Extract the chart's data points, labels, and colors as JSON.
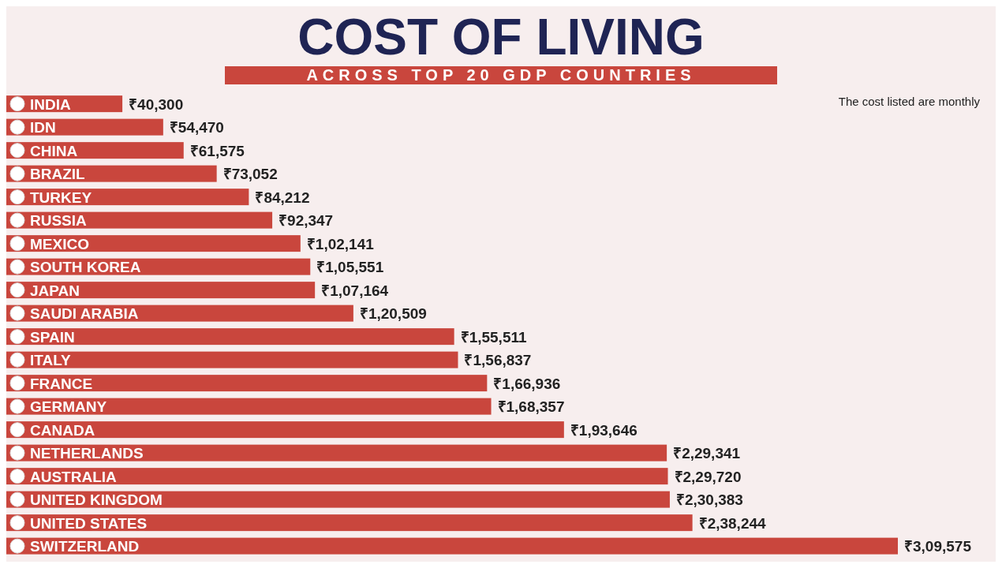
{
  "chart_data": {
    "type": "bar",
    "orientation": "horizontal",
    "title": "COST OF LIVING",
    "subtitle": "ACROSS TOP 20 GDP COUNTRIES",
    "annotations": [
      "The cost listed are monthly"
    ],
    "categories": [
      "INDIA",
      "IDN",
      "CHINA",
      "BRAZIL",
      "TURKEY",
      "RUSSIA",
      "MEXICO",
      "SOUTH KOREA",
      "JAPAN",
      "SAUDI ARABIA",
      "SPAIN",
      "ITALY",
      "FRANCE",
      "GERMANY",
      "CANADA",
      "NETHERLANDS",
      "AUSTRALIA",
      "UNITED KINGDOM",
      "UNITED STATES",
      "SWITZERLAND"
    ],
    "values": [
      40300,
      54470,
      61575,
      73052,
      84212,
      92347,
      102141,
      105551,
      107164,
      120509,
      155511,
      156837,
      166936,
      168357,
      193646,
      229341,
      229720,
      230383,
      238244,
      309575
    ],
    "value_labels": [
      "₹40,300",
      "₹54,470",
      "₹61,575",
      "₹73,052",
      "₹84,212",
      "₹92,347",
      "₹1,02,141",
      "₹1,05,551",
      "₹1,07,164",
      "₹1,20,509",
      "₹1,55,511",
      "₹1,56,837",
      "₹1,66,936",
      "₹1,68,357",
      "₹1,93,646",
      "₹2,29,341",
      "₹2,29,720",
      "₹2,30,383",
      "₹2,38,244",
      "₹3,09,575"
    ],
    "color": "#c9463d"
  }
}
